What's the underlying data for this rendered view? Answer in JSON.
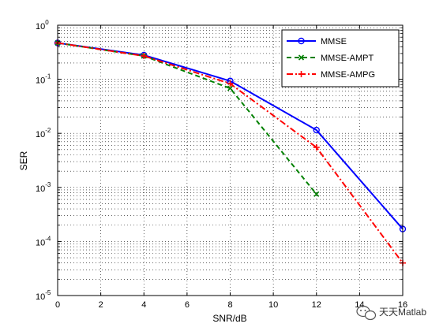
{
  "chart_data": {
    "type": "line",
    "title": "",
    "xlabel": "SNR/dB",
    "ylabel": "SER",
    "x_scale": "linear",
    "y_scale": "log",
    "xlim": [
      0,
      16
    ],
    "ylim": [
      1e-05,
      1
    ],
    "x_ticks": [
      0,
      2,
      4,
      6,
      8,
      10,
      12,
      14,
      16
    ],
    "x_tick_labels": [
      "0",
      "2",
      "4",
      "6",
      "8",
      "10",
      "12",
      "14",
      "16"
    ],
    "y_ticks": [
      1e-05,
      0.0001,
      0.001,
      0.01,
      0.1,
      1
    ],
    "y_tick_labels": [
      {
        "base": "10",
        "exp": "-5"
      },
      {
        "base": "10",
        "exp": "-4"
      },
      {
        "base": "10",
        "exp": "-3"
      },
      {
        "base": "10",
        "exp": "-2"
      },
      {
        "base": "10",
        "exp": "-1"
      },
      {
        "base": "10",
        "exp": "0"
      }
    ],
    "grid": true,
    "legend_position": "top-right",
    "series": [
      {
        "name": "MMSE",
        "color": "#0000ff",
        "line_style": "solid",
        "marker": "circle",
        "x": [
          0,
          4,
          8,
          12,
          16
        ],
        "y": [
          0.47,
          0.28,
          0.093,
          0.0115,
          0.00017
        ]
      },
      {
        "name": "MMSE-AMPT",
        "color": "#008000",
        "line_style": "dashed",
        "marker": "x",
        "x": [
          0,
          4,
          8,
          12
        ],
        "y": [
          0.47,
          0.27,
          0.068,
          0.00075
        ]
      },
      {
        "name": "MMSE-AMPG",
        "color": "#ff0000",
        "line_style": "dashdot",
        "marker": "plus",
        "x": [
          0,
          4,
          8,
          12,
          16
        ],
        "y": [
          0.47,
          0.27,
          0.083,
          0.0055,
          4e-05
        ]
      }
    ]
  },
  "watermark": {
    "text": "天天Matlab",
    "icon": "wechat-icon"
  }
}
